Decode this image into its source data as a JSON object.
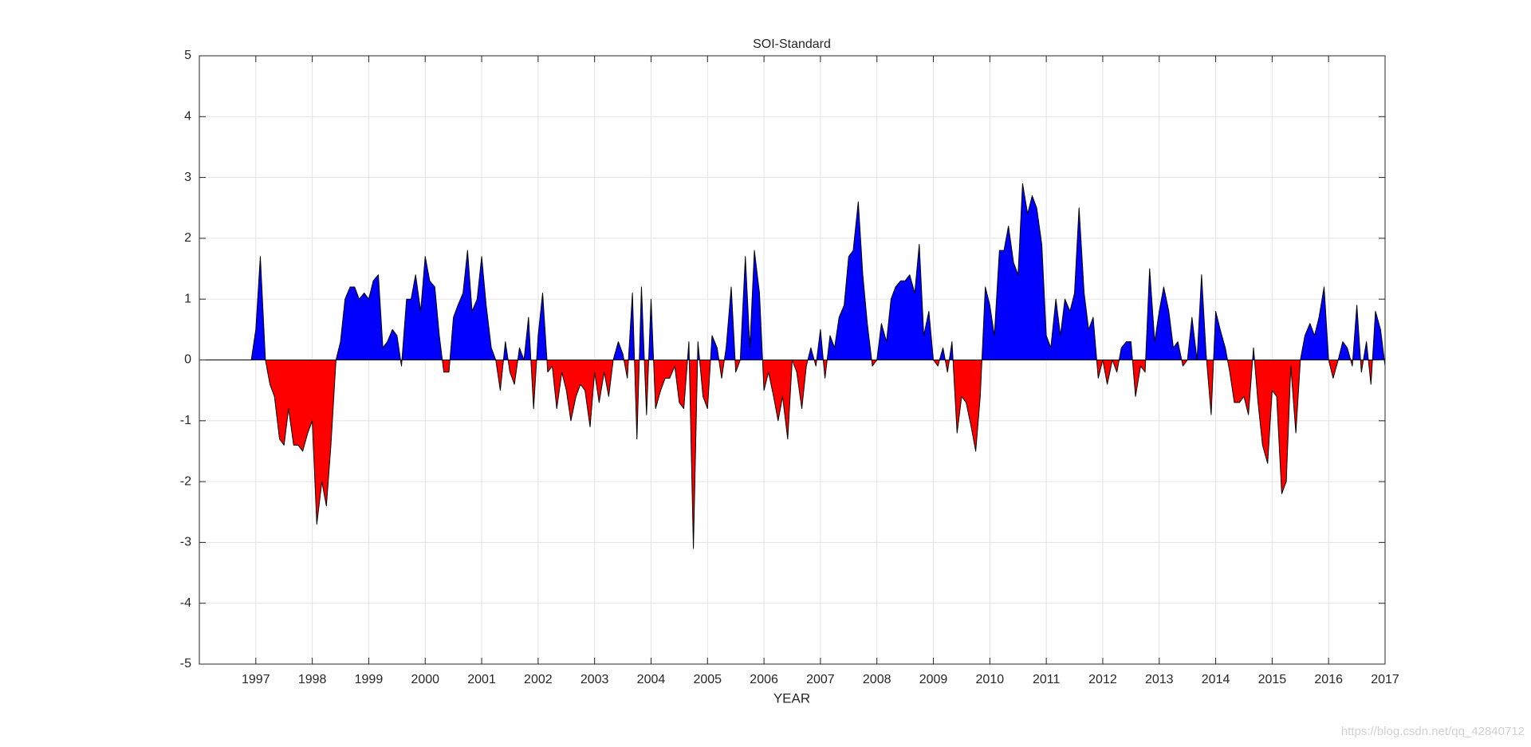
{
  "chart_data": {
    "type": "area",
    "title": "SOI-Standard",
    "x_label": "YEAR",
    "watermark": "https://blog.csdn.net/qq_42840712",
    "xlim": [
      1996,
      2017
    ],
    "ylim": [
      -5,
      5
    ],
    "xticks": [
      1997,
      1998,
      1999,
      2000,
      2001,
      2002,
      2003,
      2004,
      2005,
      2006,
      2007,
      2008,
      2009,
      2010,
      2011,
      2012,
      2013,
      2014,
      2015,
      2016,
      2017
    ],
    "yticks": [
      -5,
      -4,
      -3,
      -2,
      -1,
      0,
      1,
      2,
      3,
      4,
      5
    ],
    "grid": true,
    "positive_color": "#0000ff",
    "negative_color": "#ff0000",
    "edge_color": "#000000",
    "x": [
      1996,
      1996.08,
      1996.17,
      1996.25,
      1996.33,
      1996.42,
      1996.5,
      1996.58,
      1996.67,
      1996.75,
      1996.83,
      1996.92,
      1997,
      1997.08,
      1997.17,
      1997.25,
      1997.33,
      1997.42,
      1997.5,
      1997.58,
      1997.67,
      1997.75,
      1997.83,
      1997.92,
      1998,
      1998.08,
      1998.17,
      1998.25,
      1998.33,
      1998.42,
      1998.5,
      1998.58,
      1998.67,
      1998.75,
      1998.83,
      1998.92,
      1999,
      1999.08,
      1999.17,
      1999.25,
      1999.33,
      1999.42,
      1999.5,
      1999.58,
      1999.67,
      1999.75,
      1999.83,
      1999.92,
      2000,
      2000.08,
      2000.17,
      2000.25,
      2000.33,
      2000.42,
      2000.5,
      2000.58,
      2000.67,
      2000.75,
      2000.83,
      2000.92,
      2001,
      2001.08,
      2001.17,
      2001.25,
      2001.33,
      2001.42,
      2001.5,
      2001.58,
      2001.67,
      2001.75,
      2001.83,
      2001.92,
      2002,
      2002.08,
      2002.17,
      2002.25,
      2002.33,
      2002.42,
      2002.5,
      2002.58,
      2002.67,
      2002.75,
      2002.83,
      2002.92,
      2003,
      2003.08,
      2003.17,
      2003.25,
      2003.33,
      2003.42,
      2003.5,
      2003.58,
      2003.67,
      2003.75,
      2003.83,
      2003.92,
      2004,
      2004.08,
      2004.17,
      2004.25,
      2004.33,
      2004.42,
      2004.5,
      2004.58,
      2004.67,
      2004.75,
      2004.83,
      2004.92,
      2005,
      2005.08,
      2005.17,
      2005.25,
      2005.33,
      2005.42,
      2005.5,
      2005.58,
      2005.67,
      2005.75,
      2005.83,
      2005.92,
      2006,
      2006.08,
      2006.17,
      2006.25,
      2006.33,
      2006.42,
      2006.5,
      2006.58,
      2006.67,
      2006.75,
      2006.83,
      2006.92,
      2007,
      2007.08,
      2007.17,
      2007.25,
      2007.33,
      2007.42,
      2007.5,
      2007.58,
      2007.67,
      2007.75,
      2007.83,
      2007.92,
      2008,
      2008.08,
      2008.17,
      2008.25,
      2008.33,
      2008.42,
      2008.5,
      2008.58,
      2008.67,
      2008.75,
      2008.83,
      2008.92,
      2009,
      2009.08,
      2009.17,
      2009.25,
      2009.33,
      2009.42,
      2009.5,
      2009.58,
      2009.67,
      2009.75,
      2009.83,
      2009.92,
      2010,
      2010.08,
      2010.17,
      2010.25,
      2010.33,
      2010.42,
      2010.5,
      2010.58,
      2010.67,
      2010.75,
      2010.83,
      2010.92,
      2011,
      2011.08,
      2011.17,
      2011.25,
      2011.33,
      2011.42,
      2011.5,
      2011.58,
      2011.67,
      2011.75,
      2011.83,
      2011.92,
      2012,
      2012.08,
      2012.17,
      2012.25,
      2012.33,
      2012.42,
      2012.5,
      2012.58,
      2012.67,
      2012.75,
      2012.83,
      2012.92,
      2013,
      2013.08,
      2013.17,
      2013.25,
      2013.33,
      2013.42,
      2013.5,
      2013.58,
      2013.67,
      2013.75,
      2013.83,
      2013.92,
      2014,
      2014.08,
      2014.17,
      2014.25,
      2014.33,
      2014.42,
      2014.5,
      2014.58,
      2014.67,
      2014.75,
      2014.83,
      2014.92,
      2015,
      2015.08,
      2015.17,
      2015.25,
      2015.33,
      2015.42,
      2015.5,
      2015.58,
      2015.67,
      2015.75,
      2015.83,
      2015.92,
      2016,
      2016.08,
      2016.17,
      2016.25,
      2016.33,
      2016.42,
      2016.5,
      2016.58,
      2016.67,
      2016.75,
      2016.83,
      2016.92,
      2017
    ],
    "values": [
      0,
      0,
      0,
      0,
      0,
      0,
      0,
      0,
      0,
      0,
      0,
      0,
      0.5,
      1.7,
      0,
      -0.4,
      -0.6,
      -1.3,
      -1.4,
      -0.8,
      -1.4,
      -1.4,
      -1.5,
      -1.2,
      -1.0,
      -2.7,
      -2.0,
      -2.4,
      -1.4,
      0,
      0.3,
      1.0,
      1.2,
      1.2,
      1.0,
      1.1,
      1.0,
      1.3,
      1.4,
      0.2,
      0.3,
      0.5,
      0.4,
      -0.1,
      1.0,
      1.0,
      1.4,
      0.8,
      1.7,
      1.3,
      1.2,
      0.4,
      -0.2,
      -0.2,
      0.7,
      0.9,
      1.1,
      1.8,
      0.8,
      1.0,
      1.7,
      0.9,
      0.2,
      0,
      -0.5,
      0.3,
      -0.2,
      -0.4,
      0.2,
      0,
      0.7,
      -0.8,
      0.4,
      1.1,
      -0.2,
      -0.1,
      -0.8,
      -0.2,
      -0.5,
      -1.0,
      -0.6,
      -0.4,
      -0.5,
      -1.1,
      -0.2,
      -0.7,
      -0.2,
      -0.6,
      0,
      0.3,
      0.1,
      -0.3,
      1.1,
      -1.3,
      1.2,
      -0.9,
      1.0,
      -0.8,
      -0.5,
      -0.3,
      -0.3,
      -0.1,
      -0.7,
      -0.8,
      0.3,
      -3.1,
      0.3,
      -0.6,
      -0.8,
      0.4,
      0.2,
      -0.3,
      0.2,
      1.2,
      -0.2,
      0,
      1.7,
      0.2,
      1.8,
      1.1,
      -0.5,
      -0.2,
      -0.6,
      -1.0,
      -0.6,
      -1.3,
      0,
      -0.2,
      -0.8,
      -0.1,
      0.2,
      -0.1,
      0.5,
      -0.3,
      0.4,
      0.2,
      0.7,
      0.9,
      1.7,
      1.8,
      2.6,
      1.4,
      0.6,
      -0.1,
      0,
      0.6,
      0.3,
      1.0,
      1.2,
      1.3,
      1.3,
      1.4,
      1.1,
      1.9,
      0.4,
      0.8,
      0,
      -0.1,
      0.2,
      -0.2,
      0.3,
      -1.2,
      -0.6,
      -0.7,
      -1.1,
      -1.5,
      -0.6,
      1.2,
      0.9,
      0.4,
      1.8,
      1.8,
      2.2,
      1.6,
      1.4,
      2.9,
      2.4,
      2.7,
      2.5,
      1.9,
      0.4,
      0.2,
      1.0,
      0.4,
      1.0,
      0.8,
      1.1,
      2.5,
      1.1,
      0.5,
      0.7,
      -0.3,
      0,
      -0.4,
      0,
      -0.2,
      0.2,
      0.3,
      0.3,
      -0.6,
      -0.1,
      -0.2,
      1.5,
      0.3,
      0.8,
      1.2,
      0.8,
      0.2,
      0.3,
      -0.1,
      0,
      0.7,
      0,
      1.4,
      0.1,
      -0.9,
      0.8,
      0.5,
      0.2,
      -0.2,
      -0.7,
      -0.7,
      -0.6,
      -0.9,
      0.2,
      -0.7,
      -1.4,
      -1.7,
      -0.5,
      -0.6,
      -2.2,
      -2.0,
      -0.1,
      -1.2,
      0,
      0.4,
      0.6,
      0.4,
      0.7,
      1.2,
      0,
      -0.3,
      0,
      0.3,
      0.2,
      -0.1,
      0.9,
      -0.2,
      0.3,
      -0.4,
      0.8,
      0.5,
      -0.1
    ]
  }
}
